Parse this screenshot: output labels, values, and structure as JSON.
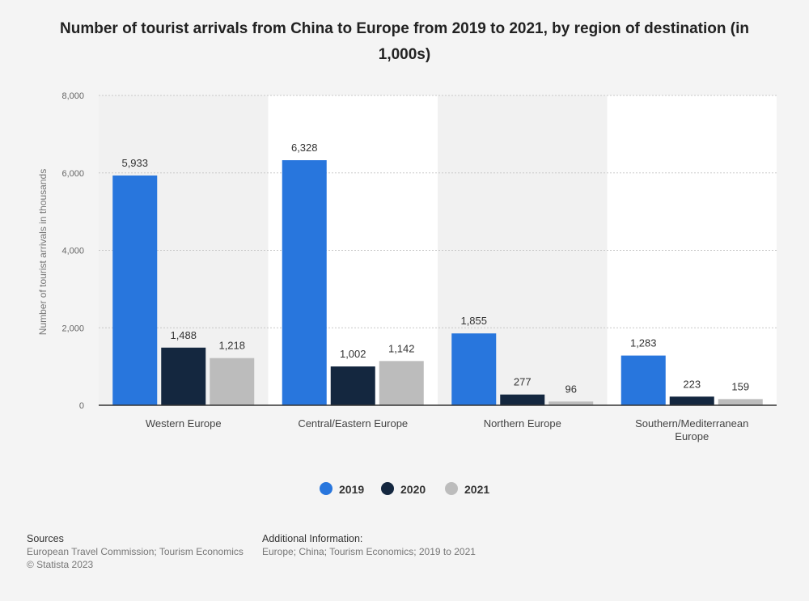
{
  "chart_data": {
    "type": "bar",
    "title": "Number of tourist arrivals from China to Europe from 2019 to 2021, by region of destination (in 1,000s)",
    "xlabel": "",
    "ylabel": "Number of tourist arrivals in thousands",
    "ylim": [
      0,
      8000
    ],
    "yticks": [
      0,
      2000,
      4000,
      6000,
      8000
    ],
    "ytick_labels": [
      "0",
      "2,000",
      "4,000",
      "6,000",
      "8,000"
    ],
    "categories": [
      "Western Europe",
      "Central/Eastern Europe",
      "Northern Europe",
      "Southern/Mediterranean Europe"
    ],
    "category_label_lines": [
      [
        "Western Europe"
      ],
      [
        "Central/Eastern Europe"
      ],
      [
        "Northern Europe"
      ],
      [
        "Southern/Mediterranean",
        "Europe"
      ]
    ],
    "series": [
      {
        "name": "2019",
        "color": "#2876dd",
        "values": [
          5933,
          6328,
          1855,
          1283
        ],
        "labels": [
          "5,933",
          "6,328",
          "1,855",
          "1,283"
        ]
      },
      {
        "name": "2020",
        "color": "#14273f",
        "values": [
          1488,
          1002,
          277,
          223
        ],
        "labels": [
          "1,488",
          "1,002",
          "277",
          "223"
        ]
      },
      {
        "name": "2021",
        "color": "#bcbcbc",
        "values": [
          1218,
          1142,
          96,
          159
        ],
        "labels": [
          "1,218",
          "1,142",
          "96",
          "159"
        ]
      }
    ],
    "legend_position": "bottom-center",
    "grid": true
  },
  "footer": {
    "sources_heading": "Sources",
    "sources_line1": "European Travel Commission; Tourism Economics",
    "sources_line2": "© Statista 2023",
    "additional_heading": "Additional Information:",
    "additional_line1": "Europe; China; Tourism Economics; 2019 to 2021"
  }
}
